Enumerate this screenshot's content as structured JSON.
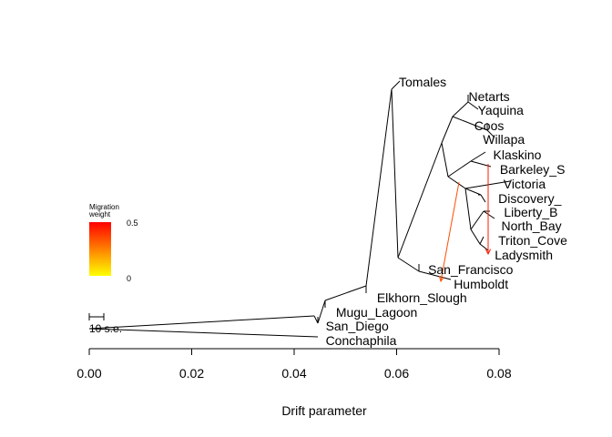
{
  "chart_data": {
    "type": "tree",
    "title": "",
    "xlabel": "Drift parameter",
    "ylabel": "",
    "xlim": [
      0,
      0.08
    ],
    "xticks": [
      "0.00",
      "0.02",
      "0.04",
      "0.06",
      "0.08"
    ],
    "xtick_values": [
      0,
      0.02,
      0.04,
      0.06,
      0.08
    ],
    "legend": {
      "title_line1": "Migration",
      "title_line2": "weight",
      "max_label": "0.5",
      "min_label": "0",
      "max_color": "#ff0000",
      "min_color": "#ffff00"
    },
    "scale_bar": {
      "label": "10 s.e."
    },
    "tips": [
      {
        "name": "Tomales",
        "drift": 0.0608
      },
      {
        "name": "Netarts",
        "drift": 0.0744
      },
      {
        "name": "Yaquina",
        "drift": 0.0762
      },
      {
        "name": "Coos",
        "drift": 0.0755
      },
      {
        "name": "Willapa",
        "drift": 0.0772
      },
      {
        "name": "Klaskino",
        "drift": 0.0792
      },
      {
        "name": "Barkeley_S",
        "drift": 0.0805
      },
      {
        "name": "Victoria",
        "drift": 0.0812
      },
      {
        "name": "Discovery_",
        "drift": 0.0802
      },
      {
        "name": "Liberty_B",
        "drift": 0.0813
      },
      {
        "name": "North_Bay",
        "drift": 0.0808
      },
      {
        "name": "Triton_Cove",
        "drift": 0.0802
      },
      {
        "name": "Ladysmith",
        "drift": 0.0795
      },
      {
        "name": "San_Francisco",
        "drift": 0.0665
      },
      {
        "name": "Humboldt",
        "drift": 0.0715
      },
      {
        "name": "Elkhorn_Slough",
        "drift": 0.0565
      },
      {
        "name": "Mugu_Lagoon",
        "drift": 0.0485
      },
      {
        "name": "San_Diego",
        "drift": 0.0465
      },
      {
        "name": "Conchaphila",
        "drift": 0.0465
      }
    ],
    "migration_edges": [
      {
        "from": "Klaskino-Barkeley clade",
        "to": "Ladysmith",
        "weight": 0.45
      },
      {
        "from": "Vancouver Island clade",
        "to": "Humboldt",
        "weight": 0.35
      }
    ]
  }
}
